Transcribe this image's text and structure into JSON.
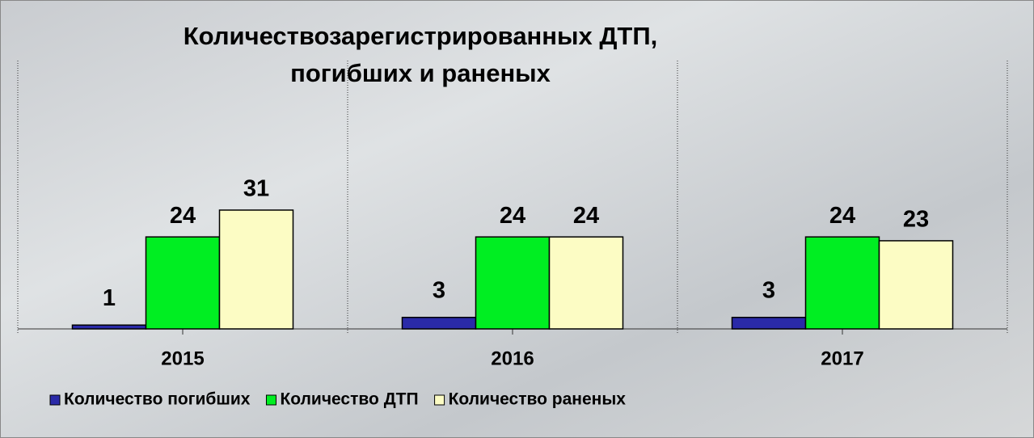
{
  "chart_data": {
    "type": "bar",
    "title": [
      "Количествозарегистрированных ДТП,",
      "погибших и раненых"
    ],
    "categories": [
      "2015",
      "2016",
      "2017"
    ],
    "series": [
      {
        "name": "Количество погибших",
        "color": "#2a2aa8",
        "values": [
          1,
          3,
          3
        ]
      },
      {
        "name": "Количество ДТП",
        "color": "#00ee22",
        "values": [
          24,
          24,
          24
        ]
      },
      {
        "name": "Количество раненых",
        "color": "#fcfcc4",
        "values": [
          31,
          24,
          23
        ]
      }
    ],
    "ylim": [
      0,
      70
    ]
  }
}
